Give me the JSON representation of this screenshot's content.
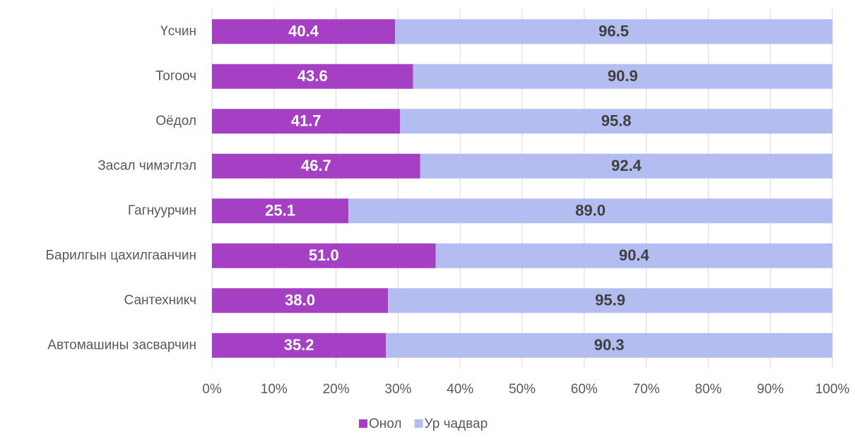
{
  "chart_data": {
    "type": "bar",
    "orientation": "horizontal",
    "stacking": "percent",
    "categories": [
      "Үсчин",
      "Тогооч",
      "Оёдол",
      "Засал чимэглэл",
      "Гагнуурчин",
      "Барилгын цахилгаанчин",
      "Сантехникч",
      "Автомашины засварчин"
    ],
    "series": [
      {
        "name": "Онол",
        "color": "#a53fc3",
        "label_color": "#ffffff",
        "values": [
          40.4,
          43.6,
          41.7,
          46.7,
          25.1,
          51.0,
          38.0,
          35.2
        ],
        "value_labels": [
          "40.4",
          "43.6",
          "41.7",
          "46.7",
          "25.1",
          "51.0",
          "38.0",
          "35.2"
        ]
      },
      {
        "name": "Ур чадвар",
        "color": "#b4bdf0",
        "label_color": "#404040",
        "values": [
          96.5,
          90.9,
          95.8,
          92.4,
          89.0,
          90.4,
          95.9,
          90.3
        ],
        "value_labels": [
          "96.5",
          "90.9",
          "95.8",
          "92.4",
          "89.0",
          "90.4",
          "95.9",
          "90.3"
        ]
      }
    ],
    "xlim": [
      0,
      100
    ],
    "xticks": [
      {
        "value": 0,
        "label": "0%"
      },
      {
        "value": 10,
        "label": "10%"
      },
      {
        "value": 20,
        "label": "20%"
      },
      {
        "value": 30,
        "label": "30%"
      },
      {
        "value": 40,
        "label": "40%"
      },
      {
        "value": 50,
        "label": "50%"
      },
      {
        "value": 60,
        "label": "60%"
      },
      {
        "value": 70,
        "label": "70%"
      },
      {
        "value": 80,
        "label": "80%"
      },
      {
        "value": 90,
        "label": "90%"
      },
      {
        "value": 100,
        "label": "100%"
      }
    ],
    "grid": true,
    "legend": "bottom"
  }
}
